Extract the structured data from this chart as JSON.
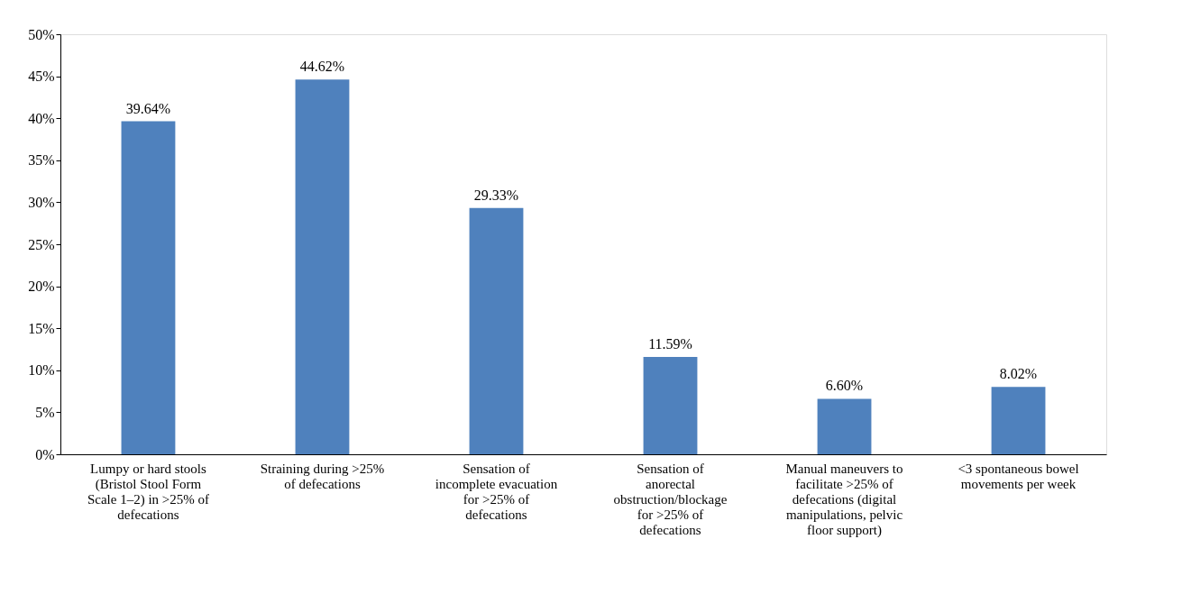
{
  "chart_data": {
    "type": "bar",
    "categories": [
      "Lumpy or hard stools (Bristol Stool Form Scale 1–2) in >25% of defecations",
      "Straining during >25% of defecations",
      "Sensation of incomplete evacuation for >25% of defecations",
      "Sensation of anorectal obstruction/blockage for >25% of defecations",
      "Manual maneuvers to facilitate >25% of defecations (digital manipulations, pelvic floor support)",
      "<3 spontaneous bowel movements per week"
    ],
    "values": [
      39.64,
      44.62,
      29.33,
      11.59,
      6.6,
      8.02
    ],
    "value_labels": [
      "39.64%",
      "44.62%",
      "29.33%",
      "11.59%",
      "6.60%",
      "8.02%"
    ],
    "color": "#4f81bd",
    "ylim": [
      0,
      50
    ],
    "yticks": [
      {
        "value": 0,
        "label": "0%"
      },
      {
        "value": 5,
        "label": "5%"
      },
      {
        "value": 10,
        "label": "10%"
      },
      {
        "value": 15,
        "label": "15%"
      },
      {
        "value": 20,
        "label": "20%"
      },
      {
        "value": 25,
        "label": "25%"
      },
      {
        "value": 30,
        "label": "30%"
      },
      {
        "value": 35,
        "label": "35%"
      },
      {
        "value": 40,
        "label": "40%"
      },
      {
        "value": 45,
        "label": "45%"
      },
      {
        "value": 50,
        "label": "50%"
      }
    ],
    "grid": false
  }
}
